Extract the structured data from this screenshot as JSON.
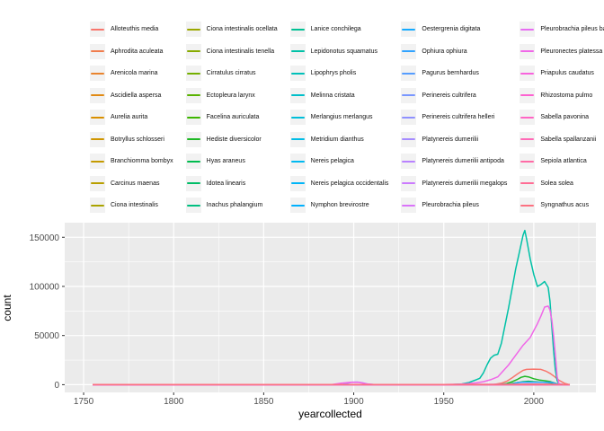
{
  "figure": {
    "panel_bg": "#EBEBEB",
    "grid_color": "#FFFFFF",
    "tick_mark_color": "#333333",
    "tick_label_color": "#4D4D4D",
    "axis_title_color": "#000000",
    "legend_key_bg": "#F2F2F2"
  },
  "axes": {
    "x_title": "yearcollected",
    "y_title": "count"
  },
  "chart_data": {
    "type": "line",
    "title": "",
    "xlabel": "yearcollected",
    "ylabel": "count",
    "xlim": [
      1739.5,
      2034.5
    ],
    "ylim": [
      -7850,
      164850
    ],
    "x_ticks": [
      1750,
      1800,
      1850,
      1900,
      1950,
      2000
    ],
    "x_minor": [
      1775,
      1825,
      1875,
      1925,
      1975,
      2025
    ],
    "y_ticks": [
      0,
      50000,
      100000,
      150000
    ],
    "y_minor": [
      25000,
      75000,
      125000
    ],
    "grid": true,
    "legend_position": "top",
    "legend_columns": 5,
    "legend_rows": 9,
    "series": [
      {
        "name": "Alloteuthis media",
        "color": "#F8766D",
        "points": [
          [
            1755,
            0
          ],
          [
            1975,
            0
          ],
          [
            1978,
            300
          ],
          [
            1982,
            1500
          ],
          [
            1985,
            3500
          ],
          [
            1988,
            7000
          ],
          [
            1991,
            11000
          ],
          [
            1994,
            14500
          ],
          [
            1996,
            15500
          ],
          [
            2000,
            15800
          ],
          [
            2004,
            15500
          ],
          [
            2007,
            13500
          ],
          [
            2009,
            11500
          ],
          [
            2011,
            9000
          ],
          [
            2014,
            4500
          ],
          [
            2017,
            1500
          ],
          [
            2019,
            400
          ],
          [
            2020,
            100
          ]
        ]
      },
      {
        "name": "Aphrodita aculeata",
        "color": "#F07D4D",
        "points": [
          [
            1755,
            0
          ],
          [
            2020,
            0
          ]
        ]
      },
      {
        "name": "Arenicola marina",
        "color": "#E9842E",
        "points": [
          [
            1755,
            0
          ],
          [
            2020,
            0
          ]
        ]
      },
      {
        "name": "Ascidiella aspersa",
        "color": "#E18A14",
        "points": [
          [
            1755,
            0
          ],
          [
            2020,
            0
          ]
        ]
      },
      {
        "name": "Aurelia aurita",
        "color": "#D98F00",
        "points": [
          [
            1755,
            0
          ],
          [
            2020,
            0
          ]
        ]
      },
      {
        "name": "Botryllus schlosseri",
        "color": "#CF9500",
        "points": [
          [
            1755,
            0
          ],
          [
            2020,
            0
          ]
        ]
      },
      {
        "name": "Branchiomma bombyx",
        "color": "#C49A00",
        "points": [
          [
            1755,
            0
          ],
          [
            2020,
            0
          ]
        ]
      },
      {
        "name": "Carcinus maenas",
        "color": "#B89F00",
        "points": [
          [
            1755,
            0
          ],
          [
            2020,
            0
          ]
        ]
      },
      {
        "name": "Ciona intestinalis",
        "color": "#AAA300",
        "points": [
          [
            1755,
            0
          ],
          [
            2020,
            0
          ]
        ]
      },
      {
        "name": "Ciona intestinalis ocellata",
        "color": "#9BA700",
        "points": [
          [
            1755,
            0
          ],
          [
            2020,
            0
          ]
        ]
      },
      {
        "name": "Ciona intestinalis tenella",
        "color": "#88AB00",
        "points": [
          [
            1755,
            0
          ],
          [
            2020,
            0
          ]
        ]
      },
      {
        "name": "Cirratulus cirratus",
        "color": "#74AF00",
        "points": [
          [
            1755,
            0
          ],
          [
            2020,
            0
          ]
        ]
      },
      {
        "name": "Ectopleura larynx",
        "color": "#59B200",
        "points": [
          [
            1755,
            0
          ],
          [
            2020,
            0
          ]
        ]
      },
      {
        "name": "Facelina auriculata",
        "color": "#3DB600",
        "points": [
          [
            1755,
            0
          ],
          [
            2020,
            0
          ]
        ]
      },
      {
        "name": "Hediste diversicolor",
        "color": "#1EB824",
        "points": [
          [
            1755,
            0
          ],
          [
            1978,
            0
          ],
          [
            1982,
            400
          ],
          [
            1985,
            1200
          ],
          [
            1988,
            3000
          ],
          [
            1991,
            5500
          ],
          [
            1993,
            7500
          ],
          [
            1995,
            8500
          ],
          [
            1997,
            8000
          ],
          [
            2000,
            6000
          ],
          [
            2003,
            4800
          ],
          [
            2006,
            4000
          ],
          [
            2009,
            3200
          ],
          [
            2012,
            1500
          ],
          [
            2014,
            400
          ],
          [
            2017,
            150
          ],
          [
            2020,
            100
          ]
        ]
      },
      {
        "name": "Hyas araneus",
        "color": "#00BB4E",
        "points": [
          [
            1755,
            0
          ],
          [
            1983,
            0
          ],
          [
            1987,
            800
          ],
          [
            1990,
            1800
          ],
          [
            1994,
            3000
          ],
          [
            1997,
            3500
          ],
          [
            2000,
            3000
          ],
          [
            2004,
            2600
          ],
          [
            2008,
            2100
          ],
          [
            2012,
            900
          ],
          [
            2014,
            250
          ],
          [
            2020,
            80
          ]
        ]
      },
      {
        "name": "Idotea linearis",
        "color": "#00BD67",
        "points": [
          [
            1755,
            0
          ],
          [
            2020,
            0
          ]
        ]
      },
      {
        "name": "Inachus phalangium",
        "color": "#00BF80",
        "points": [
          [
            1755,
            0
          ],
          [
            2020,
            0
          ]
        ]
      },
      {
        "name": "Lanice conchilega",
        "color": "#00C094",
        "points": [
          [
            1755,
            0
          ],
          [
            2020,
            0
          ]
        ]
      },
      {
        "name": "Lepidonotus squamatus",
        "color": "#00C1A7",
        "points": [
          [
            1755,
            0
          ],
          [
            1955,
            200
          ],
          [
            1960,
            700
          ],
          [
            1964,
            2200
          ],
          [
            1968,
            5000
          ],
          [
            1970,
            6500
          ],
          [
            1972,
            12000
          ],
          [
            1974,
            20000
          ],
          [
            1976,
            27000
          ],
          [
            1978,
            30000
          ],
          [
            1980,
            31000
          ],
          [
            1982,
            42000
          ],
          [
            1984,
            60000
          ],
          [
            1986,
            78000
          ],
          [
            1988,
            98000
          ],
          [
            1990,
            118000
          ],
          [
            1992,
            135000
          ],
          [
            1994,
            152000
          ],
          [
            1995,
            157000
          ],
          [
            1996,
            148000
          ],
          [
            1998,
            128000
          ],
          [
            2000,
            112000
          ],
          [
            2002,
            100000
          ],
          [
            2004,
            102000
          ],
          [
            2006,
            105000
          ],
          [
            2008,
            99000
          ],
          [
            2009,
            85000
          ],
          [
            2010,
            60000
          ],
          [
            2011,
            35000
          ],
          [
            2012,
            15000
          ],
          [
            2013,
            4000
          ],
          [
            2014,
            800
          ],
          [
            2016,
            300
          ],
          [
            2020,
            150
          ]
        ]
      },
      {
        "name": "Lipophrys pholis",
        "color": "#00C0B9",
        "points": [
          [
            1755,
            0
          ],
          [
            2020,
            0
          ]
        ]
      },
      {
        "name": "Melinna cristata",
        "color": "#00BFCA",
        "points": [
          [
            1755,
            0
          ],
          [
            2020,
            0
          ]
        ]
      },
      {
        "name": "Merlangius merlangus",
        "color": "#00BED9",
        "points": [
          [
            1755,
            0
          ],
          [
            2020,
            0
          ]
        ]
      },
      {
        "name": "Metridium dianthus",
        "color": "#00BCE6",
        "points": [
          [
            1755,
            0
          ],
          [
            2020,
            0
          ]
        ]
      },
      {
        "name": "Nereis pelagica",
        "color": "#00B9F1",
        "points": [
          [
            1755,
            0
          ],
          [
            2020,
            0
          ]
        ]
      },
      {
        "name": "Nereis pelagica occidentalis",
        "color": "#00B5F8",
        "points": [
          [
            1755,
            0
          ],
          [
            2020,
            0
          ]
        ]
      },
      {
        "name": "Nymphon brevirostre",
        "color": "#00B0FE",
        "points": [
          [
            1755,
            0
          ],
          [
            2020,
            0
          ]
        ]
      },
      {
        "name": "Oestergrenia digitata",
        "color": "#15AAFF",
        "points": [
          [
            1755,
            0
          ],
          [
            2020,
            0
          ]
        ]
      },
      {
        "name": "Ophiura ophiura",
        "color": "#31A3FF",
        "points": [
          [
            1755,
            0
          ],
          [
            1985,
            0
          ],
          [
            1988,
            500
          ],
          [
            1991,
            2200
          ],
          [
            1995,
            2600
          ],
          [
            2000,
            2500
          ],
          [
            2005,
            2500
          ],
          [
            2010,
            2400
          ],
          [
            2012,
            1200
          ],
          [
            2014,
            300
          ],
          [
            2018,
            100
          ],
          [
            2020,
            80
          ]
        ]
      },
      {
        "name": "Pagurus bernhardus",
        "color": "#559DFF",
        "points": [
          [
            1755,
            0
          ],
          [
            2020,
            0
          ]
        ]
      },
      {
        "name": "Perinereis cultrifera",
        "color": "#7997FF",
        "points": [
          [
            1755,
            0
          ],
          [
            2020,
            0
          ]
        ]
      },
      {
        "name": "Perinereis cultrifera helleri",
        "color": "#8F91FF",
        "points": [
          [
            1755,
            0
          ],
          [
            2020,
            0
          ]
        ]
      },
      {
        "name": "Platynereis dumerilii",
        "color": "#A58BFF",
        "points": [
          [
            1755,
            0
          ],
          [
            1893,
            0
          ],
          [
            1896,
            1200
          ],
          [
            1899,
            2600
          ],
          [
            1902,
            2700
          ],
          [
            1905,
            1800
          ],
          [
            1908,
            600
          ],
          [
            1911,
            100
          ],
          [
            1950,
            100
          ],
          [
            1995,
            500
          ],
          [
            2000,
            600
          ],
          [
            2005,
            500
          ],
          [
            2010,
            300
          ],
          [
            2014,
            100
          ],
          [
            2020,
            50
          ]
        ]
      },
      {
        "name": "Platynereis dumerilii antipoda",
        "color": "#B982FF",
        "points": [
          [
            1755,
            0
          ],
          [
            2020,
            0
          ]
        ]
      },
      {
        "name": "Platynereis dumerilii megalops",
        "color": "#CB7AFE",
        "points": [
          [
            1755,
            0
          ],
          [
            2020,
            0
          ]
        ]
      },
      {
        "name": "Pleurobrachia pileus",
        "color": "#DA73F9",
        "points": [
          [
            1755,
            0
          ],
          [
            2020,
            0
          ]
        ]
      },
      {
        "name": "Pleurobrachia pileus bachei",
        "color": "#E76CF2",
        "points": [
          [
            1755,
            0
          ],
          [
            2020,
            0
          ]
        ]
      },
      {
        "name": "Pleuronectes platessa",
        "color": "#F067E8",
        "points": [
          [
            1755,
            0
          ],
          [
            1888,
            100
          ],
          [
            1893,
            1500
          ],
          [
            1898,
            2500
          ],
          [
            1903,
            2300
          ],
          [
            1907,
            800
          ],
          [
            1911,
            150
          ],
          [
            1950,
            150
          ],
          [
            1958,
            400
          ],
          [
            1963,
            900
          ],
          [
            1968,
            1800
          ],
          [
            1972,
            3000
          ],
          [
            1976,
            5000
          ],
          [
            1980,
            8000
          ],
          [
            1983,
            14000
          ],
          [
            1986,
            20000
          ],
          [
            1990,
            30000
          ],
          [
            1994,
            40000
          ],
          [
            1998,
            48000
          ],
          [
            2000,
            55000
          ],
          [
            2002,
            62000
          ],
          [
            2004,
            70000
          ],
          [
            2006,
            79000
          ],
          [
            2008,
            80000
          ],
          [
            2009,
            76000
          ],
          [
            2010,
            66000
          ],
          [
            2011,
            50000
          ],
          [
            2012,
            30000
          ],
          [
            2013,
            8000
          ],
          [
            2014,
            1000
          ],
          [
            2016,
            300
          ],
          [
            2020,
            150
          ]
        ]
      },
      {
        "name": "Priapulus caudatus",
        "color": "#F863DD",
        "points": [
          [
            1755,
            0
          ],
          [
            2020,
            0
          ]
        ]
      },
      {
        "name": "Rhizostoma pulmo",
        "color": "#FD62D1",
        "points": [
          [
            1755,
            0
          ],
          [
            2020,
            0
          ]
        ]
      },
      {
        "name": "Sabella pavonina",
        "color": "#FF65C4",
        "points": [
          [
            1755,
            0
          ],
          [
            2020,
            0
          ]
        ]
      },
      {
        "name": "Sabella spallanzanii",
        "color": "#FF69B6",
        "points": [
          [
            1755,
            0
          ],
          [
            2020,
            0
          ]
        ]
      },
      {
        "name": "Sepiola atlantica",
        "color": "#FF6BA6",
        "points": [
          [
            1755,
            0
          ],
          [
            2020,
            0
          ]
        ]
      },
      {
        "name": "Solea solea",
        "color": "#FF6C94",
        "points": [
          [
            1755,
            0
          ],
          [
            2020,
            0
          ]
        ]
      },
      {
        "name": "Syngnathus acus",
        "color": "#FC7181",
        "points": [
          [
            1755,
            100
          ],
          [
            1900,
            150
          ],
          [
            1950,
            150
          ],
          [
            1985,
            300
          ],
          [
            1995,
            500
          ],
          [
            2005,
            450
          ],
          [
            2012,
            300
          ],
          [
            2017,
            150
          ],
          [
            2020,
            100
          ]
        ]
      }
    ]
  }
}
